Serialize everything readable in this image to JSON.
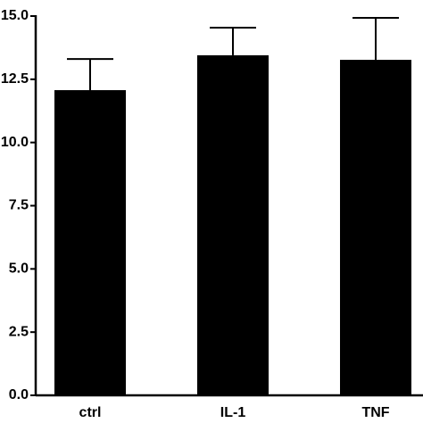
{
  "chart_data": {
    "type": "bar",
    "categories": [
      "ctrl",
      "IL-1",
      "TNF"
    ],
    "values": [
      12.07,
      13.45,
      13.27
    ],
    "errors": [
      1.23,
      1.09,
      1.66
    ],
    "color": "#000000",
    "ylim": [
      0,
      15
    ],
    "yticks": [
      {
        "value": 0,
        "label": "0.0"
      },
      {
        "value": 2.5,
        "label": "2.5"
      },
      {
        "value": 5,
        "label": "5.0"
      },
      {
        "value": 7.5,
        "label": "7.5"
      },
      {
        "value": 10,
        "label": "10.0"
      },
      {
        "value": 12.5,
        "label": "12.5"
      },
      {
        "value": 15,
        "label": "15.0"
      }
    ]
  }
}
